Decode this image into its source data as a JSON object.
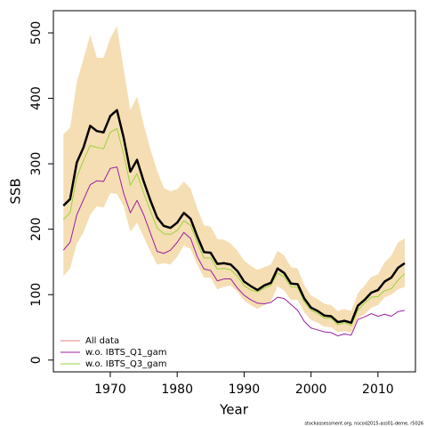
{
  "chart_data": {
    "type": "line",
    "xlabel": "Year",
    "ylabel": "SSB",
    "note": "stockassessment.org, nscod2015-ass01-deme, r5026",
    "x": [
      1963,
      1964,
      1965,
      1966,
      1967,
      1968,
      1969,
      1970,
      1971,
      1972,
      1973,
      1974,
      1975,
      1976,
      1977,
      1978,
      1979,
      1980,
      1981,
      1982,
      1983,
      1984,
      1985,
      1986,
      1987,
      1988,
      1989,
      1990,
      1991,
      1992,
      1993,
      1994,
      1995,
      1996,
      1997,
      1998,
      1999,
      2000,
      2001,
      2002,
      2003,
      2004,
      2005,
      2006,
      2007,
      2008,
      2009,
      2010,
      2011,
      2012,
      2013,
      2014
    ],
    "estimate": {
      "color": "#000000",
      "band_color": "#f5deb3",
      "values": [
        236,
        246,
        302,
        325,
        358,
        350,
        348,
        373,
        382,
        340,
        288,
        306,
        273,
        244,
        218,
        205,
        202,
        210,
        225,
        216,
        189,
        165,
        164,
        147,
        148,
        146,
        136,
        120,
        113,
        107,
        114,
        118,
        140,
        133,
        117,
        116,
        94,
        80,
        75,
        68,
        67,
        58,
        60,
        57,
        83,
        92,
        103,
        107,
        120,
        126,
        141,
        148
      ],
      "upper": [
        345,
        355,
        425,
        460,
        497,
        462,
        462,
        492,
        510,
        445,
        382,
        403,
        360,
        322,
        290,
        263,
        258,
        261,
        273,
        262,
        232,
        206,
        204,
        185,
        184,
        178,
        167,
        152,
        144,
        138,
        142,
        146,
        167,
        160,
        142,
        140,
        114,
        99,
        93,
        86,
        84,
        75,
        78,
        75,
        102,
        114,
        127,
        131,
        149,
        160,
        180,
        186
      ],
      "lower": [
        128,
        140,
        178,
        195,
        222,
        235,
        233,
        255,
        254,
        235,
        196,
        210,
        188,
        166,
        146,
        148,
        146,
        158,
        175,
        170,
        146,
        126,
        126,
        108,
        112,
        114,
        104,
        91,
        84,
        78,
        84,
        90,
        113,
        106,
        92,
        92,
        73,
        61,
        57,
        51,
        50,
        43,
        44,
        42,
        64,
        70,
        80,
        84,
        96,
        100,
        108,
        112
      ]
    },
    "series": [
      {
        "name": "All data",
        "color": "#f08080",
        "values": [
          236,
          246,
          302,
          325,
          358,
          350,
          348,
          373,
          382,
          340,
          288,
          306,
          273,
          244,
          218,
          205,
          202,
          210,
          225,
          216,
          189,
          165,
          164,
          147,
          148,
          146,
          136,
          120,
          113,
          107,
          114,
          118,
          140,
          133,
          117,
          116,
          94,
          80,
          75,
          68,
          67,
          58,
          60,
          57,
          83,
          92,
          103,
          107,
          120,
          126,
          141,
          148
        ]
      },
      {
        "name": "w.o. IBTS_Q1_gam",
        "color": "#9b1fa3",
        "values": [
          168,
          180,
          222,
          245,
          268,
          274,
          273,
          293,
          295,
          255,
          225,
          244,
          222,
          194,
          166,
          163,
          168,
          180,
          195,
          186,
          158,
          139,
          137,
          121,
          124,
          124,
          110,
          99,
          92,
          87,
          86,
          88,
          96,
          94,
          85,
          76,
          59,
          49,
          46,
          43,
          42,
          37,
          40,
          38,
          62,
          66,
          71,
          67,
          70,
          67,
          74,
          76
        ]
      },
      {
        "name": "w.o. IBTS_Q3_gam",
        "color": "#9ad33c",
        "values": [
          215,
          225,
          280,
          305,
          328,
          325,
          323,
          348,
          354,
          315,
          267,
          285,
          255,
          228,
          202,
          193,
          192,
          198,
          213,
          206,
          180,
          156,
          156,
          139,
          140,
          138,
          128,
          114,
          107,
          104,
          110,
          114,
          133,
          127,
          112,
          111,
          89,
          76,
          71,
          64,
          64,
          54,
          57,
          53,
          76,
          87,
          96,
          97,
          106,
          109,
          122,
          132
        ]
      }
    ],
    "xlim": [
      1961.5,
      2015.6
    ],
    "ylim": [
      -18,
      534
    ],
    "xticks": [
      1970,
      1980,
      1990,
      2000,
      2010
    ],
    "yticks": [
      0,
      100,
      200,
      300,
      400,
      500
    ],
    "legend": "bottom-left"
  }
}
